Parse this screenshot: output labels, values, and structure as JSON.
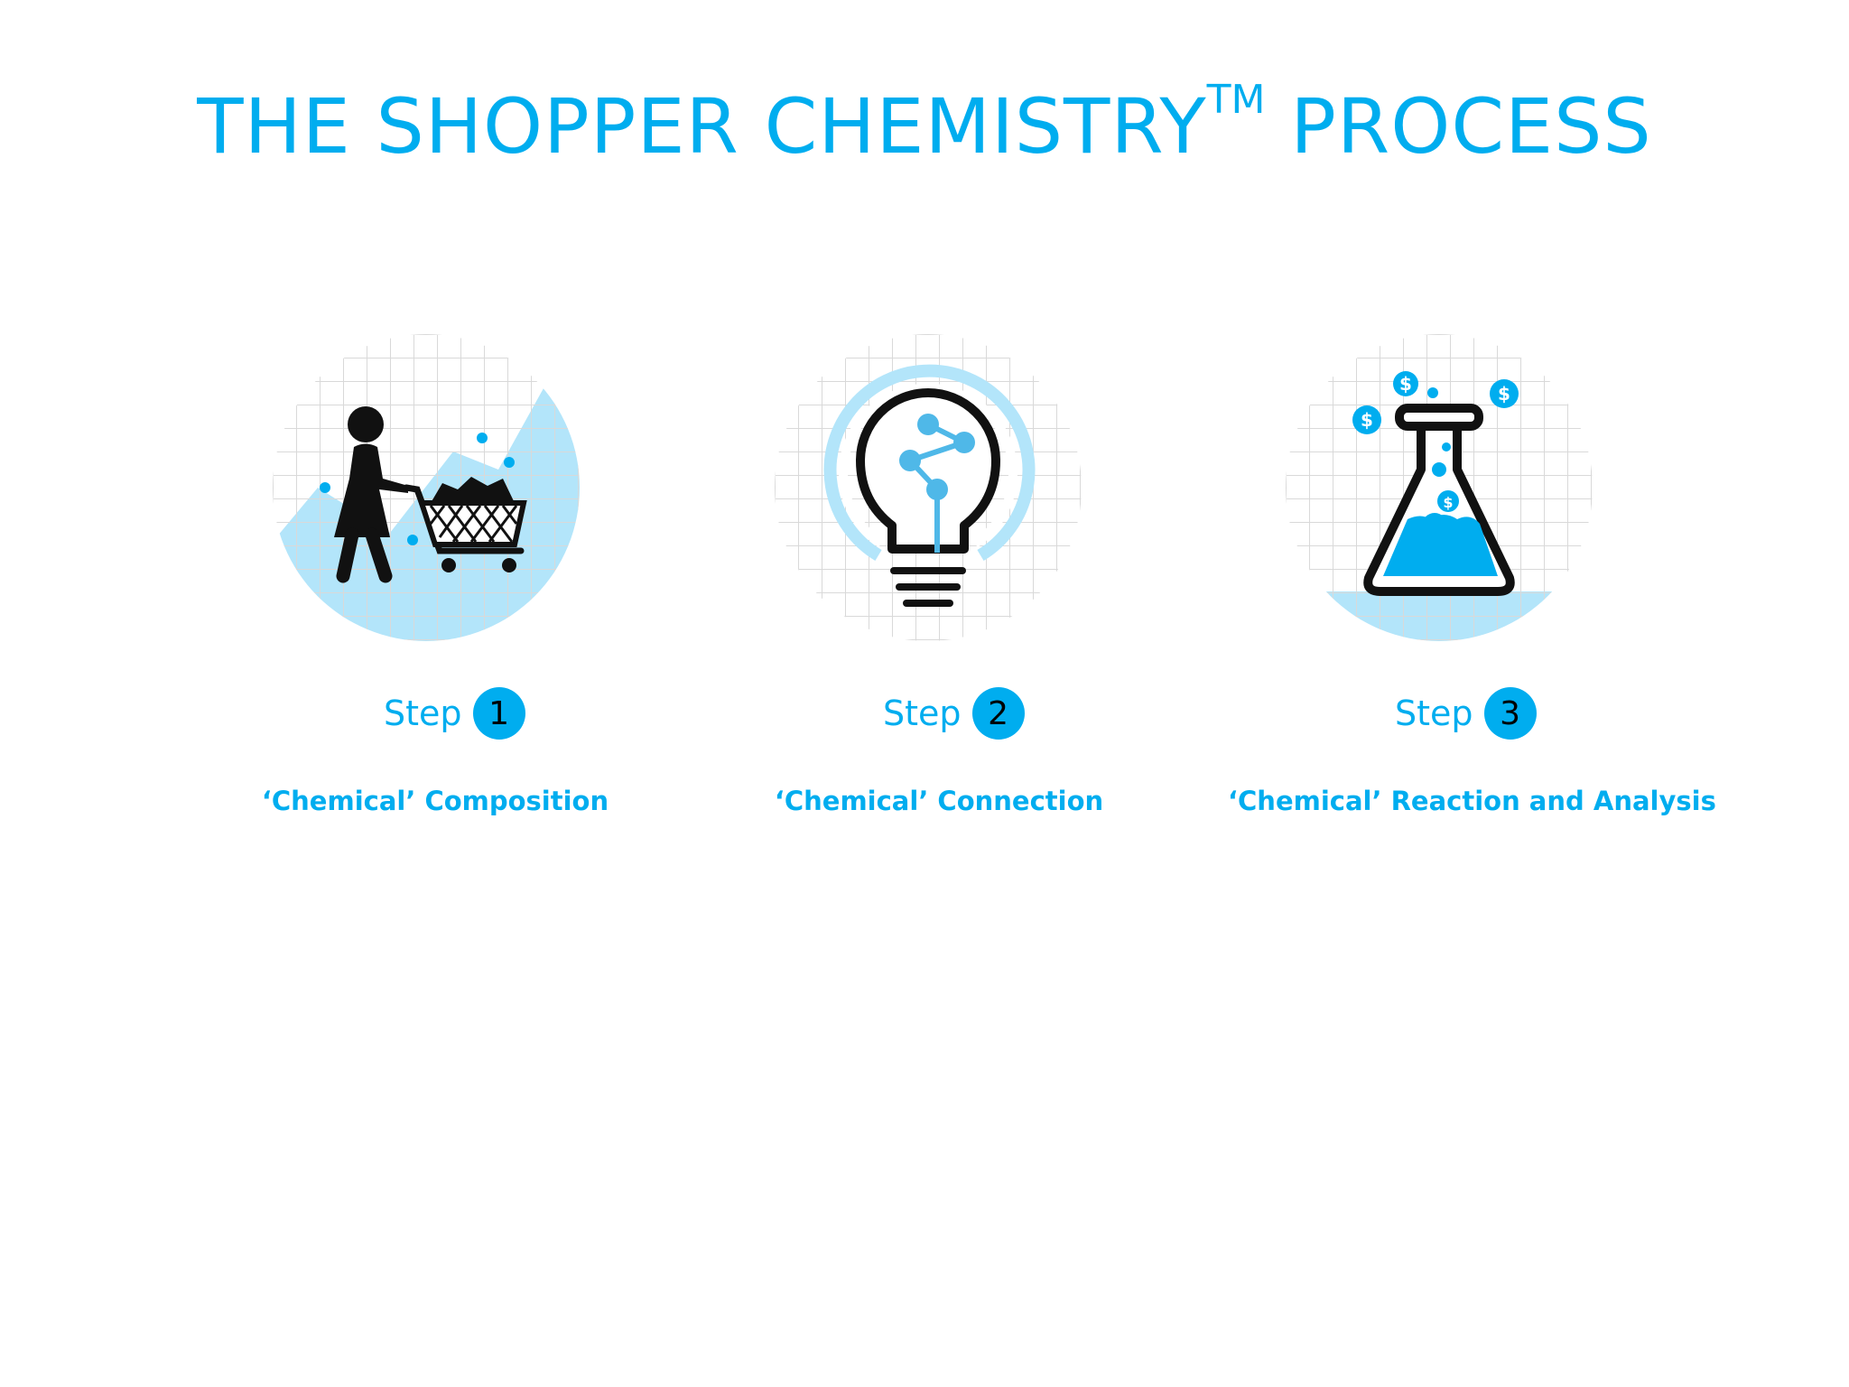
{
  "title": {
    "main": "THE SHOPPER CHEMISTRY",
    "superscript": "TM",
    "suffix": " PROCESS"
  },
  "colors": {
    "accent": "#00adef",
    "light_accent": "#b3e5fa",
    "grid": "#d9d9d9",
    "icon_dark": "#111111"
  },
  "steps": [
    {
      "label": "Step",
      "number": "1",
      "caption": "‘Chemical’ Composition",
      "icon": "shopper-cart-icon"
    },
    {
      "label": "Step",
      "number": "2",
      "caption": "‘Chemical’ Connection",
      "icon": "lightbulb-icon"
    },
    {
      "label": "Step",
      "number": "3",
      "caption": "‘Chemical’ Reaction and Analysis",
      "icon": "flask-icon"
    }
  ]
}
